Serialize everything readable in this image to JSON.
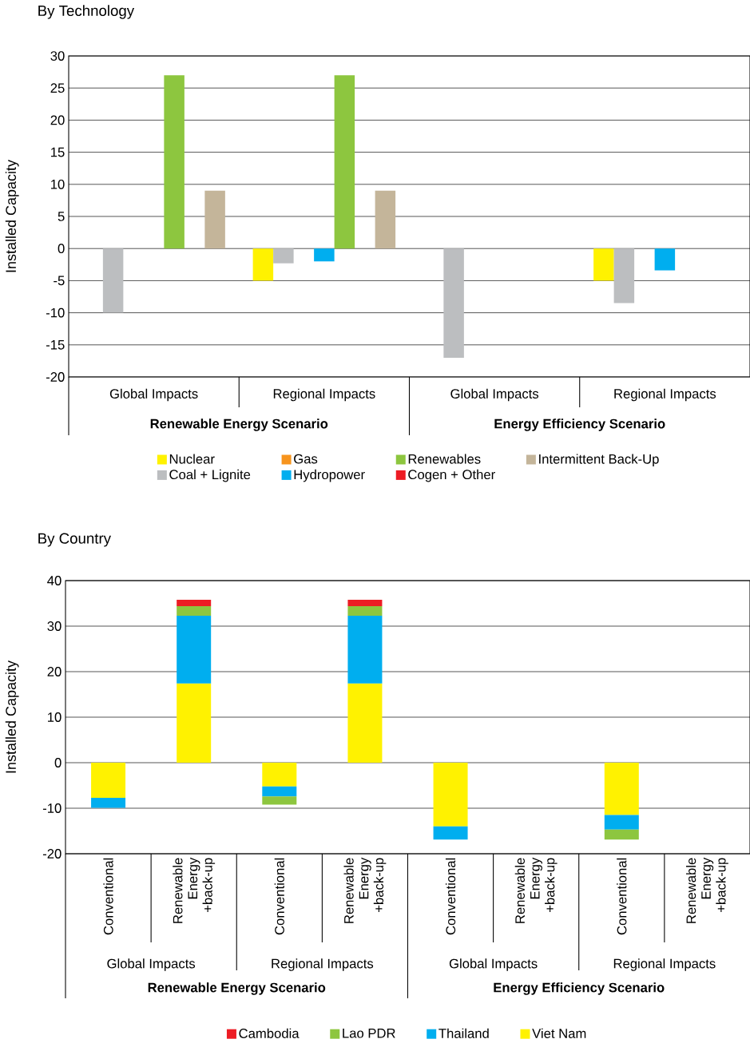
{
  "chart_data": [
    {
      "type": "bar",
      "title": "By Technology",
      "ylabel": "Installed Capacity",
      "categories": [
        "Global Impacts",
        "Regional Impacts",
        "Global Impacts",
        "Regional Impacts"
      ],
      "series": [
        {
          "name": "Nuclear",
          "color": "#fff200",
          "values": [
            null,
            -5,
            null,
            -5
          ]
        },
        {
          "name": "Coal + Lignite",
          "color": "#bcbec0",
          "values": [
            -10,
            -2.3,
            -17,
            -8.5
          ]
        },
        {
          "name": "Gas",
          "color": "#f7941d",
          "values": [
            null,
            null,
            null,
            null
          ]
        },
        {
          "name": "Hydropower",
          "color": "#00aeef",
          "values": [
            null,
            -2,
            null,
            -3.4
          ]
        },
        {
          "name": "Renewables",
          "color": "#8dc63f",
          "values": [
            27,
            27,
            null,
            null
          ]
        },
        {
          "name": "Cogen + Other",
          "color": "#ed1c24",
          "values": [
            null,
            null,
            null,
            null
          ]
        },
        {
          "name": "Intermittent Back-Up",
          "color": "#c4b59a",
          "values": [
            9,
            9,
            null,
            null
          ]
        }
      ],
      "ylim": [
        -20,
        30
      ],
      "yticks": [
        -20,
        -15,
        -10,
        -5,
        0,
        5,
        10,
        15,
        20,
        25,
        30
      ],
      "grid": "y",
      "legend": "bottom",
      "annotations": [
        "Renewable Energy Scenario",
        "Energy Efficiency Scenario"
      ]
    },
    {
      "type": "bar",
      "stacked": true,
      "title": "By Country",
      "ylabel": "Installed Capacity",
      "categories": [
        "Conventional",
        "Renewable Energy +back-up",
        "Conventional",
        "Renewable Energy +back-up",
        "Conventional",
        "Renewable Energy +back-up",
        "Conventional",
        "Renewable Energy +back-up"
      ],
      "series": [
        {
          "name": "Viet Nam",
          "color": "#fff200",
          "values": [
            -7.7,
            17.4,
            -5.2,
            17.4,
            -14,
            0,
            -11.5,
            0
          ]
        },
        {
          "name": "Thailand",
          "color": "#00aeef",
          "values": [
            -2.2,
            14.9,
            -2.2,
            14.9,
            -2.9,
            0,
            -3.2,
            0
          ]
        },
        {
          "name": "Lao PDR",
          "color": "#8dc63f",
          "values": [
            0,
            2.1,
            -1.8,
            2.1,
            0,
            0,
            -2.2,
            0
          ]
        },
        {
          "name": "Cambodia",
          "color": "#ed1c24",
          "values": [
            0,
            1.4,
            0,
            1.4,
            0,
            0,
            0,
            0
          ]
        }
      ],
      "ylim": [
        -20,
        40
      ],
      "yticks": [
        -20,
        -10,
        0,
        10,
        20,
        30,
        40
      ],
      "grid": "y",
      "legend": "bottom",
      "annotations": [
        "Global Impacts",
        "Regional Impacts",
        "Global Impacts",
        "Regional Impacts",
        "Renewable Energy Scenario",
        "Energy Efficiency Scenario"
      ]
    }
  ]
}
